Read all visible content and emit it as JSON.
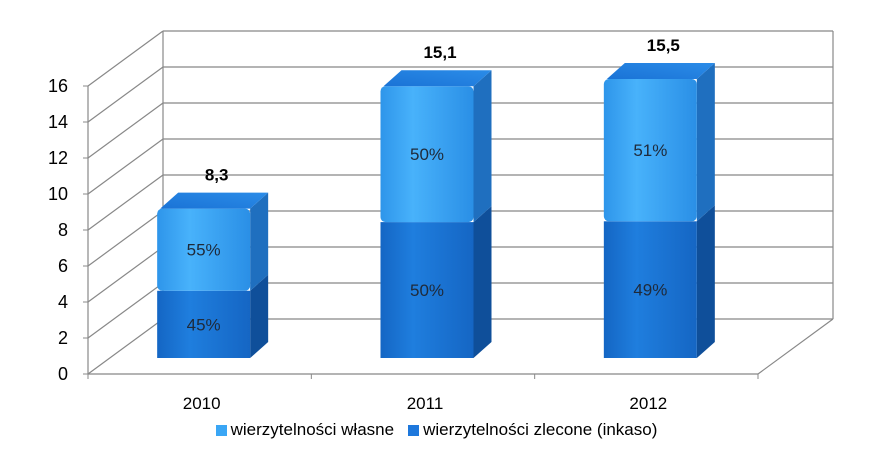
{
  "chart_data": {
    "type": "bar",
    "stacked": true,
    "categories": [
      "2010",
      "2011",
      "2012"
    ],
    "totals": [
      8.3,
      15.1,
      15.5
    ],
    "total_labels": [
      "8,3",
      "15,1",
      "15,5"
    ],
    "series": [
      {
        "name": "wierzytelności zlecone (inkaso)",
        "share_percent": [
          45,
          50,
          49
        ],
        "labels": [
          "45%",
          "50%",
          "49%"
        ],
        "color": "#1e78dc"
      },
      {
        "name": "wierzytelności własne",
        "share_percent": [
          55,
          50,
          51
        ],
        "labels": [
          "55%",
          "50%",
          "51%"
        ],
        "color": "#3aa6f5"
      }
    ],
    "ylim": [
      0,
      16
    ],
    "yticks": [
      "0",
      "2",
      "4",
      "6",
      "8",
      "10",
      "12",
      "14",
      "16"
    ],
    "grid": true,
    "legend_position": "bottom"
  }
}
